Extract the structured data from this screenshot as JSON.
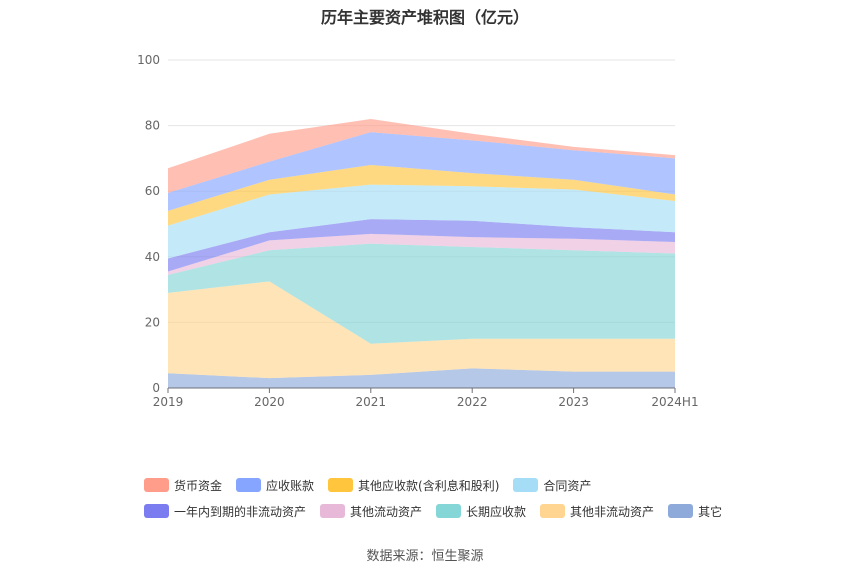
{
  "source_prefix": "数据来源：",
  "source_name": "恒生聚源",
  "chart_data": {
    "type": "area",
    "stacked": true,
    "title": "历年主要资产堆积图（亿元）",
    "xlabel": "",
    "ylabel": "",
    "categories": [
      "2019",
      "2020",
      "2021",
      "2022",
      "2023",
      "2024H1"
    ],
    "ylim": [
      0,
      100
    ],
    "yticks": [
      "0",
      "20",
      "40",
      "60",
      "80",
      "100"
    ],
    "grid": true,
    "legend_position": "bottom",
    "series": [
      {
        "name": "其它",
        "color": "#8eaadb",
        "values": [
          4.5,
          3.0,
          4.0,
          6.0,
          5.0,
          5.0
        ]
      },
      {
        "name": "其他非流动资产",
        "color": "#ffd591",
        "values": [
          24.5,
          29.5,
          9.5,
          9.0,
          10.0,
          10.0
        ]
      },
      {
        "name": "长期应收款",
        "color": "#85d6d6",
        "values": [
          5.5,
          9.5,
          30.5,
          28.0,
          27.0,
          26.0
        ]
      },
      {
        "name": "其他流动资产",
        "color": "#e8b8d8",
        "values": [
          1.0,
          3.0,
          3.0,
          3.0,
          3.5,
          3.5
        ]
      },
      {
        "name": "一年内到期的非流动资产",
        "color": "#7b7cf0",
        "values": [
          4.0,
          2.5,
          4.5,
          5.0,
          3.5,
          3.0
        ]
      },
      {
        "name": "合同资产",
        "color": "#a5ddf6",
        "values": [
          10.0,
          11.5,
          10.5,
          10.5,
          11.5,
          9.5
        ]
      },
      {
        "name": "其他应收款(含利息和股利)",
        "color": "#ffc53d",
        "values": [
          4.5,
          4.5,
          6.0,
          4.0,
          3.0,
          2.0
        ]
      },
      {
        "name": "应收账款",
        "color": "#85a5ff",
        "values": [
          5.5,
          5.5,
          10.0,
          10.0,
          9.0,
          11.0
        ]
      },
      {
        "name": "货币资金",
        "color": "#ff9c8a",
        "values": [
          7.5,
          8.5,
          4.0,
          2.0,
          1.0,
          1.0
        ]
      }
    ],
    "legend_order": [
      [
        "货币资金",
        "应收账款",
        "其他应收款(含利息和股利)",
        "合同资产"
      ],
      [
        "一年内到期的非流动资产",
        "其他流动资产",
        "长期应收款",
        "其他非流动资产",
        "其它"
      ]
    ]
  }
}
